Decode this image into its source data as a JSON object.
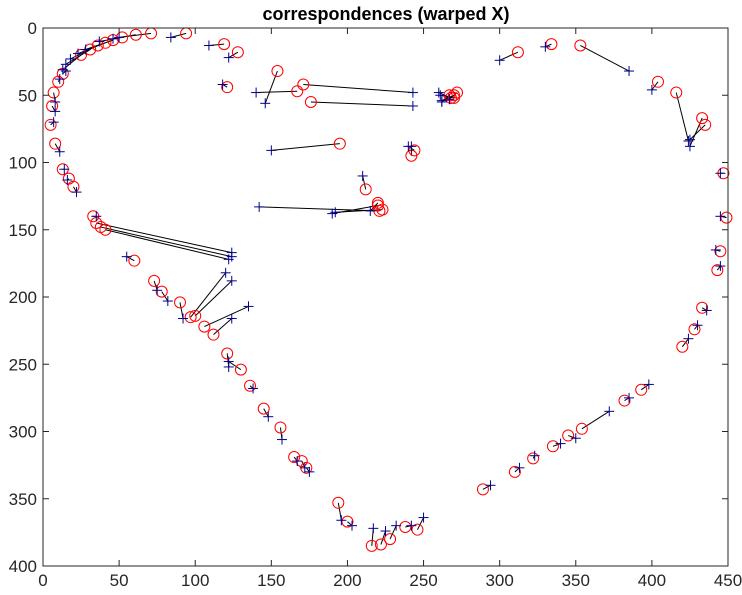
{
  "chart_data": {
    "type": "scatter",
    "title": "correspondences (warped X)",
    "xlabel": "",
    "ylabel": "",
    "xlim": [
      0,
      450
    ],
    "ylim": [
      0,
      400
    ],
    "y_reversed": true,
    "x_ticks": [
      0,
      50,
      100,
      150,
      200,
      250,
      300,
      350,
      400,
      450
    ],
    "y_ticks": [
      0,
      50,
      100,
      150,
      200,
      250,
      300,
      350,
      400
    ],
    "grid": false,
    "colors": {
      "circles": "#ff0000",
      "crosses": "#00008b",
      "links": "#000000",
      "axes": "#262626"
    },
    "correspondences": [
      [
        5,
        72,
        7,
        70
      ],
      [
        6,
        58,
        8,
        62
      ],
      [
        7,
        48,
        8,
        55
      ],
      [
        10,
        40,
        11,
        38
      ],
      [
        13,
        34,
        15,
        32
      ],
      [
        8,
        86,
        11,
        92
      ],
      [
        13,
        105,
        14,
        105
      ],
      [
        17,
        112,
        16,
        113
      ],
      [
        20,
        118,
        22,
        122
      ],
      [
        33,
        140,
        35,
        140
      ],
      [
        35,
        145,
        124,
        167
      ],
      [
        38,
        148,
        124,
        170
      ],
      [
        41,
        150,
        122,
        172
      ],
      [
        60,
        173,
        55,
        170
      ],
      [
        73,
        188,
        75,
        195
      ],
      [
        78,
        196,
        82,
        203
      ],
      [
        90,
        204,
        92,
        216
      ],
      [
        97,
        215,
        120,
        182
      ],
      [
        100,
        214,
        124,
        188
      ],
      [
        106,
        222,
        135,
        207
      ],
      [
        112,
        228,
        124,
        216
      ],
      [
        121,
        242,
        122,
        252
      ],
      [
        130,
        254,
        122,
        248
      ],
      [
        136,
        266,
        138,
        268
      ],
      [
        145,
        283,
        148,
        289
      ],
      [
        156,
        297,
        157,
        306
      ],
      [
        165,
        319,
        167,
        322
      ],
      [
        170,
        322,
        172,
        327
      ],
      [
        173,
        327,
        175,
        330
      ],
      [
        194,
        353,
        196,
        366
      ],
      [
        200,
        367,
        203,
        370
      ],
      [
        216,
        385,
        217,
        372
      ],
      [
        222,
        384,
        225,
        374
      ],
      [
        228,
        380,
        232,
        370
      ],
      [
        238,
        371,
        242,
        370
      ],
      [
        246,
        373,
        250,
        364
      ],
      [
        289,
        343,
        294,
        340
      ],
      [
        310,
        330,
        313,
        327
      ],
      [
        322,
        320,
        323,
        318
      ],
      [
        335,
        311,
        340,
        309
      ],
      [
        345,
        303,
        350,
        305
      ],
      [
        354,
        298,
        372,
        285
      ],
      [
        382,
        277,
        385,
        275
      ],
      [
        393,
        269,
        398,
        265
      ],
      [
        420,
        237,
        424,
        231
      ],
      [
        428,
        224,
        430,
        221
      ],
      [
        433,
        208,
        436,
        210
      ],
      [
        443,
        180,
        445,
        177
      ],
      [
        445,
        166,
        442,
        165
      ],
      [
        449,
        141,
        445,
        140
      ],
      [
        447,
        108,
        445,
        108
      ],
      [
        435,
        72,
        425,
        83
      ],
      [
        433,
        67,
        425,
        88
      ],
      [
        416,
        48,
        424,
        84
      ],
      [
        404,
        40,
        400,
        46
      ],
      [
        353,
        13,
        385,
        32
      ],
      [
        334,
        12,
        330,
        14
      ],
      [
        312,
        18,
        300,
        24
      ],
      [
        268,
        52,
        260,
        48
      ],
      [
        270,
        50,
        262,
        54
      ],
      [
        272,
        48,
        267,
        53
      ],
      [
        270,
        52,
        261,
        50
      ],
      [
        267,
        50,
        262,
        55
      ],
      [
        167,
        47,
        140,
        48
      ],
      [
        154,
        32,
        146,
        56
      ],
      [
        171,
        42,
        243,
        48
      ],
      [
        176,
        55,
        243,
        58
      ],
      [
        195,
        86,
        150,
        91
      ],
      [
        244,
        91,
        240,
        88
      ],
      [
        242,
        95,
        242,
        88
      ],
      [
        212,
        120,
        210,
        110
      ],
      [
        220,
        132,
        190,
        138
      ],
      [
        221,
        136,
        142,
        133
      ],
      [
        223,
        135,
        192,
        137
      ],
      [
        220,
        130,
        215,
        136
      ],
      [
        121,
        44,
        118,
        42
      ],
      [
        128,
        18,
        122,
        22
      ],
      [
        119,
        12,
        109,
        13
      ],
      [
        94,
        4,
        84,
        7
      ],
      [
        71,
        4,
        50,
        7
      ],
      [
        61,
        5,
        46,
        8
      ],
      [
        52,
        7,
        37,
        10
      ],
      [
        46,
        9,
        28,
        16
      ],
      [
        41,
        11,
        23,
        19
      ],
      [
        36,
        13,
        18,
        23
      ],
      [
        31,
        16,
        15,
        27
      ],
      [
        25,
        20,
        13,
        31
      ]
    ]
  }
}
